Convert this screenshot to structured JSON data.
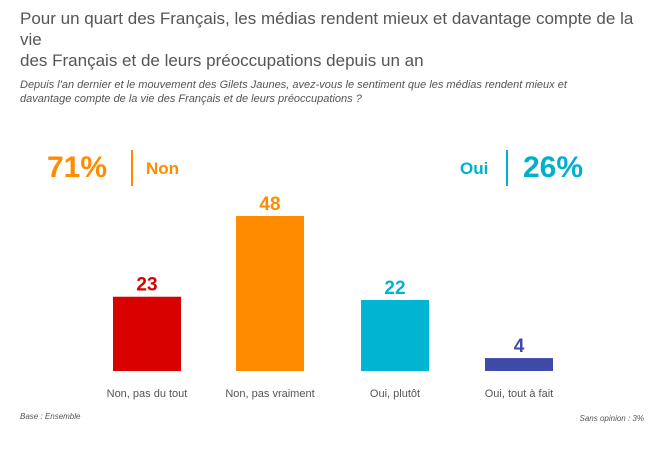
{
  "header": {
    "title": "Pour un quart des Français, les médias rendent mieux et davantage compte de la vie\ndes Français et de leurs préoccupations depuis un an",
    "question": "Depuis l'an dernier et le mouvement des Gilets Jaunes, avez-vous le sentiment que les médias rendent mieux et\ndavantage compte de la vie des Français et de leurs préoccupations ?"
  },
  "summary": {
    "non_pct": "71%",
    "non_label": "Non",
    "non_color": "#ff8c00",
    "oui_pct": "26%",
    "oui_label": "Oui",
    "oui_color": "#00b0cc"
  },
  "chart_data": {
    "type": "bar",
    "categories": [
      "Non, pas du tout",
      "Non, pas vraiment",
      "Oui, plutôt",
      "Oui, tout à fait"
    ],
    "values": [
      23,
      48,
      22,
      4
    ],
    "colors": [
      "#d90000",
      "#ff8c00",
      "#00b4d2",
      "#3f4aa8"
    ],
    "ylim": [
      0,
      48
    ],
    "grid": false,
    "legend": "none"
  },
  "footer": {
    "base": "Base : Ensemble",
    "sans_opinion": "Sans opinion : 3%"
  }
}
